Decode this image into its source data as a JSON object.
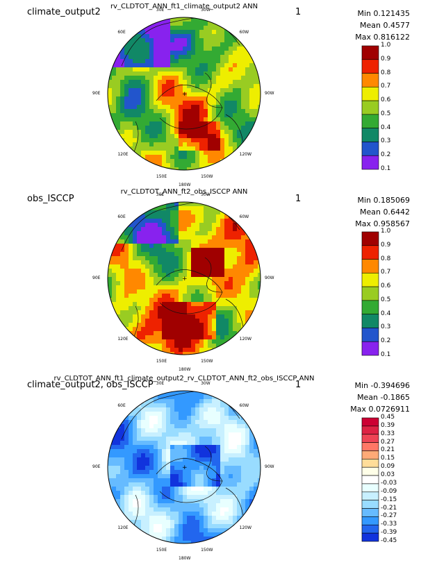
{
  "chart_data": [
    {
      "type": "heatmap",
      "projection": "polar-stereographic",
      "title": "rv_CLDTOT_ANN_ft1_climate_output2  ANN",
      "left_label": "climate_output2",
      "right_label": "1",
      "stats": {
        "min": "Min 0.121435",
        "mean": "Mean 0.4577",
        "max": "Max 0.816122"
      },
      "lon_labels": [
        "30E",
        "30W",
        "60E",
        "60W",
        "90E",
        "90W",
        "120E",
        "120W",
        "150E",
        "150W",
        "180W"
      ],
      "colorbar": {
        "ticks": [
          "1.0",
          "0.9",
          "0.8",
          "0.7",
          "0.6",
          "0.5",
          "0.4",
          "0.3",
          "0.2",
          "0.1"
        ],
        "colors": [
          "#a00000",
          "#ee2200",
          "#ff8800",
          "#eeee00",
          "#99cc22",
          "#33aa33",
          "#118866",
          "#2255cc",
          "#8822ee"
        ]
      }
    },
    {
      "type": "heatmap",
      "projection": "polar-stereographic",
      "title": "rv_CLDTOT_ANN_ft2_obs_ISCCP  ANN",
      "left_label": "obs_ISCCP",
      "right_label": "1",
      "stats": {
        "min": "Min 0.185069",
        "mean": "Mean 0.6442",
        "max": "Max 0.958567"
      },
      "lon_labels": [
        "30E",
        "30W",
        "60E",
        "60W",
        "90E",
        "90W",
        "120E",
        "120W",
        "150E",
        "150W",
        "180W"
      ],
      "colorbar": {
        "ticks": [
          "1.0",
          "0.9",
          "0.8",
          "0.7",
          "0.6",
          "0.5",
          "0.4",
          "0.3",
          "0.2",
          "0.1"
        ],
        "colors": [
          "#a00000",
          "#ee2200",
          "#ff8800",
          "#eeee00",
          "#99cc22",
          "#33aa33",
          "#118866",
          "#2255cc",
          "#8822ee"
        ]
      }
    },
    {
      "type": "heatmap",
      "projection": "polar-stereographic",
      "title": "rv_CLDTOT_ANN_ft1_climate_output2_rv_CLDTOT_ANN_ft2_obs_ISCCP  ANN",
      "left_label": "climate_output2, obs_ISCCP",
      "right_label": "1",
      "stats": {
        "min": "Min -0.394696",
        "mean": "Mean -0.1865",
        "max": "Max 0.0726911"
      },
      "lon_labels": [
        "30E",
        "30W",
        "60E",
        "60W",
        "90E",
        "90W",
        "120E",
        "120W",
        "150E",
        "150W",
        "180W"
      ],
      "colorbar": {
        "ticks": [
          "0.45",
          "0.39",
          "0.33",
          "0.27",
          "0.21",
          "0.15",
          "0.09",
          "0.03",
          "-0.03",
          "-0.09",
          "-0.15",
          "-0.21",
          "-0.27",
          "-0.33",
          "-0.39",
          "-0.45"
        ],
        "colors": [
          "#cc0033",
          "#dd2244",
          "#ee4455",
          "#ff7766",
          "#ffaa77",
          "#ffdd99",
          "#ffffe8",
          "#ffffff",
          "#e8ffff",
          "#c8f0ff",
          "#99dcff",
          "#66bbff",
          "#3399ff",
          "#2266ee",
          "#1133dd"
        ]
      }
    }
  ]
}
